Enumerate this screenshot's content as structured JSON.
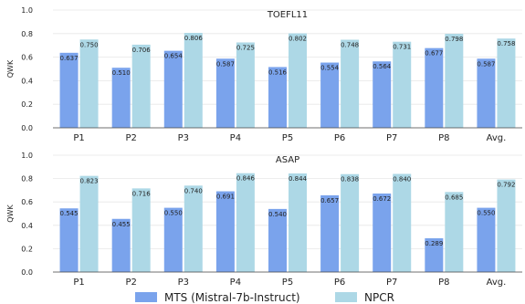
{
  "chart_data": [
    {
      "type": "bar",
      "title": "TOEFL11",
      "ylabel": "QWK",
      "xlabel": "",
      "ylim": [
        0,
        1.0
      ],
      "yticks": [
        "0.0",
        "0.2",
        "0.4",
        "0.6",
        "0.8",
        "1.0"
      ],
      "grid": true,
      "categories": [
        "P1",
        "P2",
        "P3",
        "P4",
        "P5",
        "P6",
        "P7",
        "P8",
        "Avg."
      ],
      "series": [
        {
          "name": "MTS (Mistral-7b-Instruct)",
          "color": "#7aa3ec",
          "values": [
            0.637,
            0.51,
            0.654,
            0.587,
            0.516,
            0.554,
            0.564,
            0.677,
            0.587
          ],
          "labels": [
            "0.637",
            "0.510",
            "0.654",
            "0.587",
            "0.516",
            "0.554",
            "0.564",
            "0.677",
            "0.587"
          ]
        },
        {
          "name": "NPCR",
          "color": "#add8e6",
          "values": [
            0.75,
            0.706,
            0.806,
            0.725,
            0.802,
            0.748,
            0.731,
            0.798,
            0.758
          ],
          "labels": [
            "0.750",
            "0.706",
            "0.806",
            "0.725",
            "0.802",
            "0.748",
            "0.731",
            "0.798",
            "0.758"
          ]
        }
      ]
    },
    {
      "type": "bar",
      "title": "ASAP",
      "ylabel": "QWK",
      "xlabel": "",
      "ylim": [
        0,
        1.0
      ],
      "yticks": [
        "0.0",
        "0.2",
        "0.4",
        "0.6",
        "0.8",
        "1.0"
      ],
      "grid": true,
      "categories": [
        "P1",
        "P2",
        "P3",
        "P4",
        "P5",
        "P6",
        "P7",
        "P8",
        "Avg."
      ],
      "series": [
        {
          "name": "MTS (Mistral-7b-Instruct)",
          "color": "#7aa3ec",
          "values": [
            0.545,
            0.455,
            0.55,
            0.691,
            0.54,
            0.657,
            0.672,
            0.289,
            0.55
          ],
          "labels": [
            "0.545",
            "0.455",
            "0.550",
            "0.691",
            "0.540",
            "0.657",
            "0.672",
            "0.289",
            "0.550"
          ]
        },
        {
          "name": "NPCR",
          "color": "#add8e6",
          "values": [
            0.823,
            0.716,
            0.74,
            0.846,
            0.844,
            0.838,
            0.84,
            0.685,
            0.792
          ],
          "labels": [
            "0.823",
            "0.716",
            "0.740",
            "0.846",
            "0.844",
            "0.838",
            "0.840",
            "0.685",
            "0.792"
          ]
        }
      ]
    }
  ],
  "legend": {
    "placement": "bottom-center",
    "items": [
      {
        "label": "MTS (Mistral-7b-Instruct)",
        "color": "#7aa3ec"
      },
      {
        "label": "NPCR",
        "color": "#add8e6"
      }
    ]
  }
}
